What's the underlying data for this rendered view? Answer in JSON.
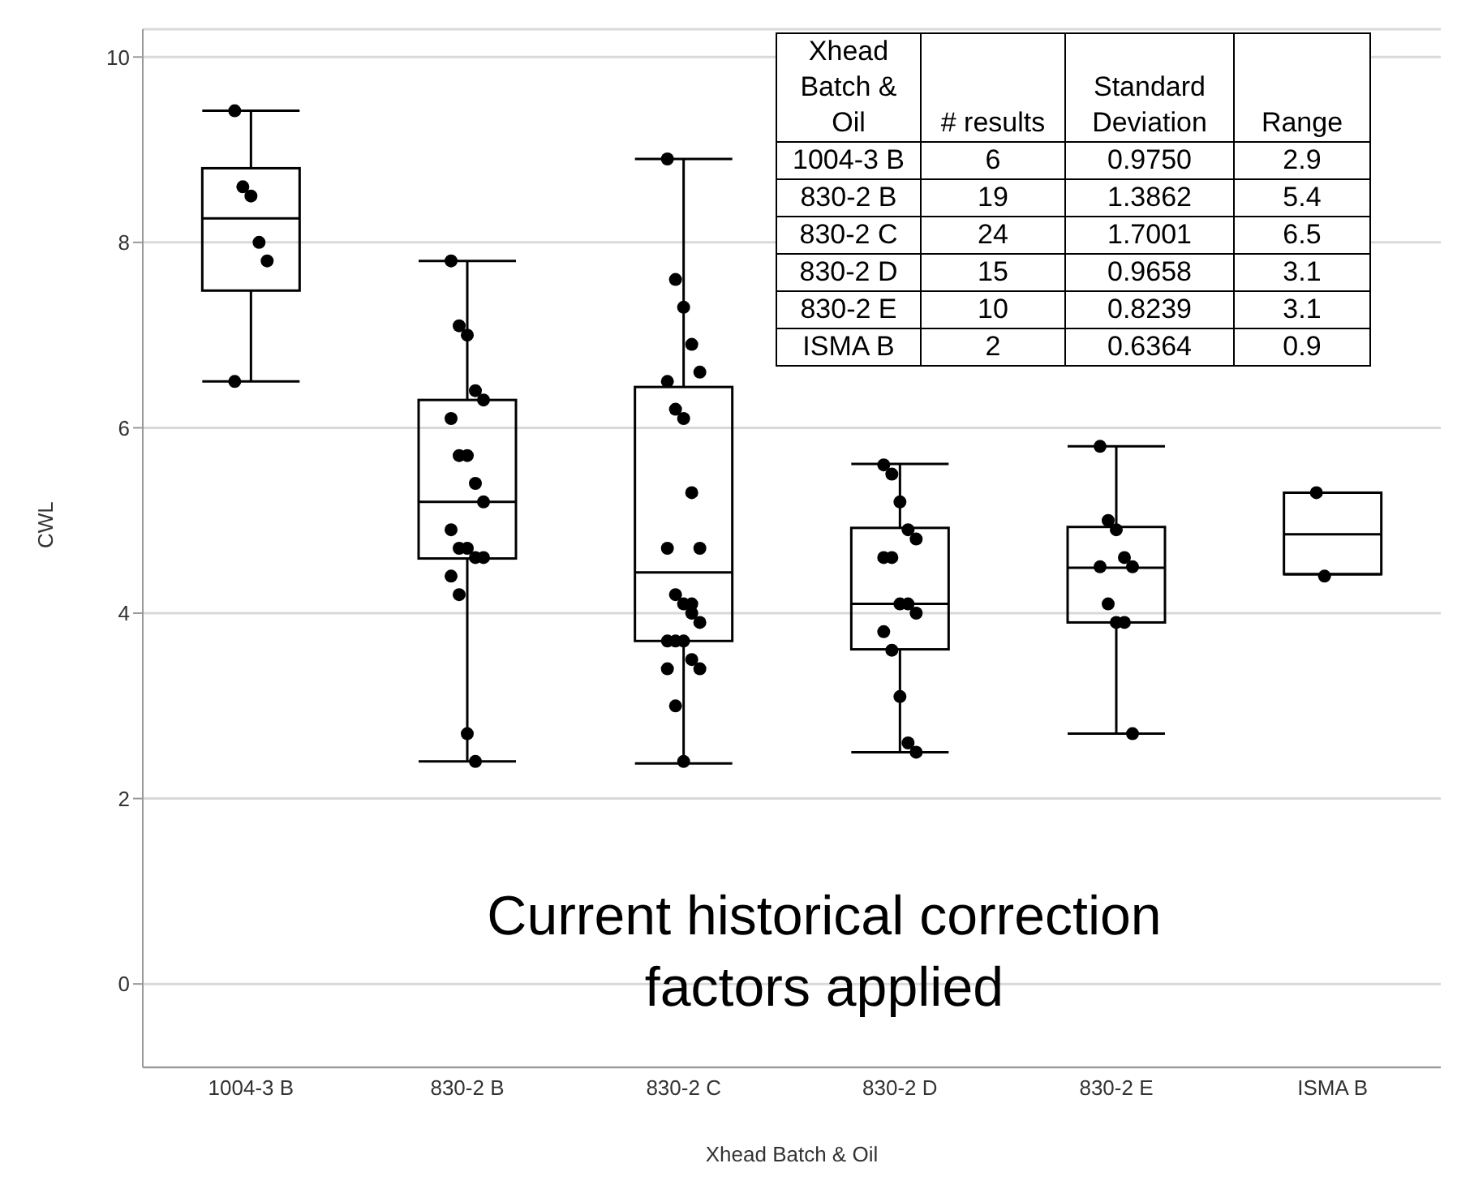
{
  "chart_data": {
    "type": "box",
    "xlabel": "Xhead Batch & Oil",
    "ylabel": "CWL",
    "categories": [
      "1004-3 B",
      "830-2 B",
      "830-2 C",
      "830-2 D",
      "830-2 E",
      "ISMA B"
    ],
    "ylim": [
      -0.9,
      10.3
    ],
    "yticks": [
      0,
      2,
      4,
      6,
      8,
      10
    ],
    "grid": "y",
    "series": [
      {
        "color": "#000000",
        "boxes": [
          {
            "low": 6.5,
            "q1": 7.48,
            "median": 8.26,
            "q3": 8.8,
            "high": 9.42
          },
          {
            "low": 2.4,
            "q1": 4.59,
            "median": 5.2,
            "q3": 6.3,
            "high": 7.8
          },
          {
            "low": 2.38,
            "q1": 3.7,
            "median": 4.44,
            "q3": 6.44,
            "high": 8.9
          },
          {
            "low": 2.5,
            "q1": 3.61,
            "median": 4.1,
            "q3": 4.92,
            "high": 5.61
          },
          {
            "low": 2.7,
            "q1": 3.9,
            "median": 4.49,
            "q3": 4.93,
            "high": 5.8
          },
          {
            "low": 4.42,
            "q1": 4.42,
            "median": 4.85,
            "q3": 5.3,
            "high": 5.3
          }
        ]
      },
      {
        "type": "scatter",
        "color": "#000000",
        "marker": "circle",
        "x": [
          "1004-3 B",
          "1004-3 B",
          "1004-3 B",
          "1004-3 B",
          "1004-3 B",
          "1004-3 B",
          "830-2 B",
          "830-2 B",
          "830-2 B",
          "830-2 B",
          "830-2 B",
          "830-2 B",
          "830-2 B",
          "830-2 B",
          "830-2 B",
          "830-2 B",
          "830-2 B",
          "830-2 B",
          "830-2 B",
          "830-2 B",
          "830-2 B",
          "830-2 B",
          "830-2 B",
          "830-2 B",
          "830-2 B",
          "830-2 C",
          "830-2 C",
          "830-2 C",
          "830-2 C",
          "830-2 C",
          "830-2 C",
          "830-2 C",
          "830-2 C",
          "830-2 C",
          "830-2 C",
          "830-2 C",
          "830-2 C",
          "830-2 C",
          "830-2 C",
          "830-2 C",
          "830-2 C",
          "830-2 C",
          "830-2 C",
          "830-2 C",
          "830-2 C",
          "830-2 C",
          "830-2 C",
          "830-2 C",
          "830-2 C",
          "830-2 D",
          "830-2 D",
          "830-2 D",
          "830-2 D",
          "830-2 D",
          "830-2 D",
          "830-2 D",
          "830-2 D",
          "830-2 D",
          "830-2 D",
          "830-2 D",
          "830-2 D",
          "830-2 D",
          "830-2 D",
          "830-2 D",
          "830-2 E",
          "830-2 E",
          "830-2 E",
          "830-2 E",
          "830-2 E",
          "830-2 E",
          "830-2 E",
          "830-2 E",
          "830-2 E",
          "830-2 E",
          "ISMA B",
          "ISMA B"
        ],
        "values": [
          9.42,
          8.6,
          8.5,
          8.0,
          7.8,
          6.5,
          7.8,
          7.1,
          7.0,
          6.4,
          6.3,
          6.1,
          5.7,
          5.7,
          5.4,
          5.2,
          4.9,
          4.7,
          4.7,
          4.6,
          4.6,
          4.4,
          4.2,
          2.7,
          2.4,
          8.9,
          7.6,
          7.3,
          6.9,
          6.6,
          6.5,
          6.2,
          6.1,
          5.3,
          4.7,
          4.7,
          4.2,
          4.1,
          4.1,
          3.9,
          3.7,
          3.7,
          3.7,
          3.5,
          3.4,
          3.4,
          3.0,
          2.4,
          4.0,
          5.6,
          5.5,
          5.2,
          4.9,
          4.8,
          4.6,
          4.6,
          4.1,
          4.1,
          4.0,
          3.8,
          3.6,
          3.1,
          2.6,
          2.5,
          5.8,
          5.0,
          4.9,
          4.6,
          4.5,
          4.5,
          4.1,
          3.9,
          3.9,
          2.7,
          5.3,
          4.4
        ]
      }
    ],
    "annotations": [
      "Current historical correction factors applied",
      "Xhead Batch & Oil",
      "# results",
      "Standard Deviation",
      "Range",
      "1004-3 B",
      "6",
      "0.9750",
      "2.9",
      "830-2 B",
      "19",
      "1.3862",
      "5.4",
      "830-2 C",
      "24",
      "1.7001",
      "6.5",
      "830-2 D",
      "15",
      "0.9658",
      "3.1",
      "830-2 E",
      "10",
      "0.8239",
      "3.1",
      "ISMA B",
      "2",
      "0.6364",
      "0.9"
    ]
  }
}
